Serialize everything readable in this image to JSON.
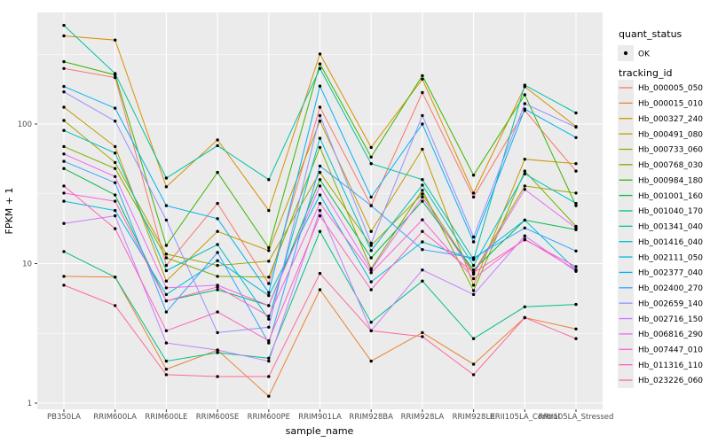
{
  "legend": {
    "quant_status_title": "quant_status",
    "quant_status_value": "OK",
    "tracking_title": "tracking_id"
  },
  "chart_data": {
    "type": "line",
    "title": "",
    "xlabel": "sample_name",
    "ylabel": "FPKM + 1",
    "y_scale": "log10",
    "yticks": [
      1,
      10,
      100
    ],
    "ytick_labels": [
      "1",
      "10",
      "100"
    ],
    "minor_gridlines": [
      3.162,
      31.623,
      316.228
    ],
    "ylim": [
      0.9,
      650
    ],
    "legend_position": "right",
    "panel_bg": "#EBEBEB",
    "grid_color": "#FFFFFF",
    "point_color": "#000000",
    "quant_status": "OK",
    "categories": [
      "PB350LA",
      "RRIM600LA",
      "RRIM600LE",
      "RRIM600SE",
      "RRIM600PE",
      "RRIM901LA",
      "RRIM928BA",
      "RRIM928LA",
      "RRIM928LE",
      "RRII105LA_Control",
      "RRII105LA_Stressed"
    ],
    "series": [
      {
        "name": "Hb_000005_050",
        "color": "#F8766D",
        "values": [
          250,
          215,
          9.7,
          27,
          7.2,
          132,
          26,
          168,
          30,
          125,
          46
        ]
      },
      {
        "name": "Hb_000015_010",
        "color": "#EA8331",
        "values": [
          8.1,
          8.0,
          1.75,
          2.4,
          1.12,
          6.5,
          2.0,
          3.2,
          1.9,
          4.1,
          3.4
        ]
      },
      {
        "name": "Hb_000327_240",
        "color": "#D89000",
        "values": [
          428,
          400,
          35.5,
          77,
          24,
          318,
          68,
          210,
          32,
          185,
          96
        ]
      },
      {
        "name": "Hb_000491_080",
        "color": "#C09B00",
        "values": [
          132,
          69,
          7.5,
          17,
          12.4,
          105,
          17,
          66,
          7.0,
          56,
          52
        ]
      },
      {
        "name": "Hb_000733_060",
        "color": "#A3A500",
        "values": [
          106,
          53,
          11.7,
          9.7,
          10.4,
          45,
          13.5,
          31.5,
          8.6,
          36,
          32
        ]
      },
      {
        "name": "Hb_000768_030",
        "color": "#7CAE00",
        "values": [
          69,
          48,
          11.0,
          8.1,
          8.0,
          68,
          9.2,
          33.5,
          6.4,
          46,
          18.5
        ]
      },
      {
        "name": "Hb_000984_180",
        "color": "#39B600",
        "values": [
          280,
          225,
          13.5,
          45,
          13,
          270,
          58,
          222,
          43,
          162,
          26
        ]
      },
      {
        "name": "Hb_001001_160",
        "color": "#00BB4E",
        "values": [
          48,
          31,
          5.4,
          6.5,
          5.0,
          40,
          11,
          28,
          9.0,
          20.5,
          17.5
        ]
      },
      {
        "name": "Hb_001040_170",
        "color": "#00C087",
        "values": [
          12.2,
          8.0,
          2.0,
          2.3,
          2.1,
          17,
          3.8,
          7.5,
          2.9,
          4.9,
          5.1
        ]
      },
      {
        "name": "Hb_001341_040",
        "color": "#00C1A3",
        "values": [
          510,
          230,
          41,
          70,
          40,
          250,
          52,
          40,
          10.7,
          190,
          120
        ]
      },
      {
        "name": "Hb_001416_040",
        "color": "#00BFC4",
        "values": [
          90,
          62,
          8.9,
          13.7,
          4.0,
          79,
          12.4,
          36.5,
          9.7,
          44,
          27
        ]
      },
      {
        "name": "Hb_002111_050",
        "color": "#00BAE0",
        "values": [
          28,
          24,
          6.0,
          10.5,
          5.9,
          31,
          7.4,
          14.3,
          10.7,
          20.5,
          9.0
        ]
      },
      {
        "name": "Hb_002377_040",
        "color": "#00B0F6",
        "values": [
          186,
          130,
          26,
          21,
          6.2,
          187,
          30,
          100,
          14.3,
          128,
          80
        ]
      },
      {
        "name": "Hb_002400_270",
        "color": "#35A2FF",
        "values": [
          54,
          38,
          4.5,
          12,
          2.7,
          50,
          26,
          12.6,
          11,
          18,
          12.3
        ]
      },
      {
        "name": "Hb_002659_140",
        "color": "#9590FF",
        "values": [
          170,
          105,
          20.5,
          3.2,
          3.5,
          115,
          14,
          115,
          15.5,
          140,
          95
        ]
      },
      {
        "name": "Hb_002716_150",
        "color": "#C77CFF",
        "values": [
          19.4,
          22,
          2.7,
          2.4,
          2.0,
          24,
          3.3,
          9.0,
          6.0,
          15.8,
          8.8
        ]
      },
      {
        "name": "Hb_006816_290",
        "color": "#E76BF3",
        "values": [
          61,
          42,
          6.7,
          7.0,
          5.0,
          36,
          9.0,
          30,
          8.4,
          34,
          18
        ]
      },
      {
        "name": "Hb_007447_010",
        "color": "#FA62DB",
        "values": [
          32,
          28,
          5.4,
          6.8,
          4.2,
          27,
          8.6,
          20.6,
          7.8,
          15,
          9.0
        ]
      },
      {
        "name": "Hb_011316_110",
        "color": "#FF62BC",
        "values": [
          36,
          17.8,
          3.3,
          4.5,
          2.8,
          22,
          6.5,
          17,
          8.6,
          14.8,
          9.5
        ]
      },
      {
        "name": "Hb_023226_060",
        "color": "#FF6A98",
        "values": [
          7.0,
          5.0,
          1.6,
          1.55,
          1.55,
          8.5,
          3.3,
          3.0,
          1.6,
          4.1,
          2.9
        ]
      }
    ]
  }
}
